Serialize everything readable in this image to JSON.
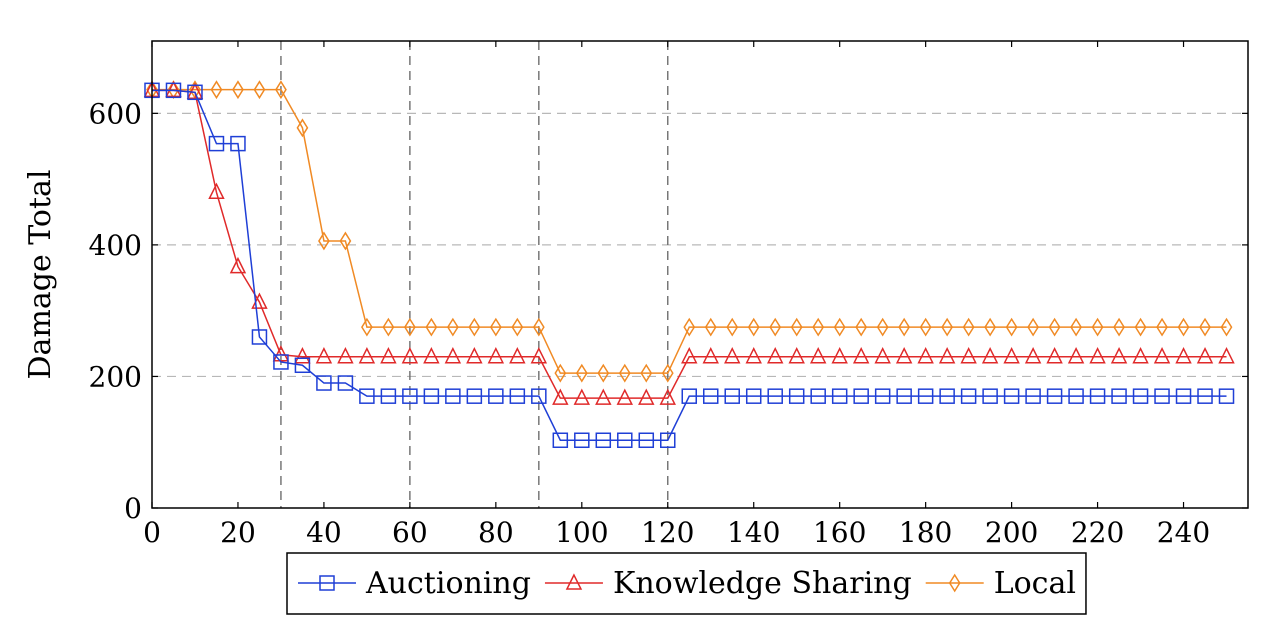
{
  "chart_data": {
    "type": "line",
    "title": "",
    "xlabel": "",
    "ylabel": "Damage Total",
    "xlim": [
      0,
      255
    ],
    "ylim": [
      0,
      710
    ],
    "x_ticks": [
      0,
      20,
      40,
      60,
      80,
      100,
      120,
      140,
      160,
      180,
      200,
      220,
      240
    ],
    "y_ticks": [
      0,
      200,
      400,
      600
    ],
    "grid": {
      "horizontal": "dashed light gray at each y tick",
      "vertical": "dashed dark gray at selected x values",
      "vertical_lines_at": [
        30,
        60,
        90,
        120
      ]
    },
    "legend_position": "bottom-center",
    "x": [
      0,
      5,
      10,
      15,
      20,
      25,
      30,
      35,
      40,
      45,
      50,
      55,
      60,
      65,
      70,
      75,
      80,
      85,
      90,
      95,
      100,
      105,
      110,
      115,
      120,
      125,
      130,
      135,
      140,
      145,
      150,
      155,
      160,
      165,
      170,
      175,
      180,
      185,
      190,
      195,
      200,
      205,
      210,
      215,
      220,
      225,
      230,
      235,
      240,
      245,
      250
    ],
    "series": [
      {
        "name": "Auctioning",
        "color": "#1f3fd6",
        "marker": "square",
        "values": [
          635,
          635,
          632,
          554,
          554,
          260,
          222,
          217,
          190,
          190,
          170,
          170,
          170,
          170,
          170,
          170,
          170,
          170,
          170,
          103,
          103,
          103,
          103,
          103,
          103,
          170,
          170,
          170,
          170,
          170,
          170,
          170,
          170,
          170,
          170,
          170,
          170,
          170,
          170,
          170,
          170,
          170,
          170,
          170,
          170,
          170,
          170,
          170,
          170,
          170,
          170
        ]
      },
      {
        "name": "Knowledge Sharing",
        "color": "#e02a2a",
        "marker": "triangle",
        "values": [
          635,
          635,
          632,
          480,
          367,
          313,
          233,
          230,
          230,
          230,
          230,
          230,
          230,
          230,
          230,
          230,
          230,
          230,
          230,
          167,
          167,
          167,
          167,
          167,
          167,
          230,
          230,
          230,
          230,
          230,
          230,
          230,
          230,
          230,
          230,
          230,
          230,
          230,
          230,
          230,
          230,
          230,
          230,
          230,
          230,
          230,
          230,
          230,
          230,
          230,
          230
        ]
      },
      {
        "name": "Local",
        "color": "#f08a24",
        "marker": "diamond",
        "values": [
          636,
          636,
          636,
          636,
          636,
          636,
          636,
          578,
          406,
          406,
          275,
          275,
          275,
          275,
          275,
          275,
          275,
          275,
          275,
          205,
          205,
          205,
          205,
          205,
          205,
          275,
          275,
          275,
          275,
          275,
          275,
          275,
          275,
          275,
          275,
          275,
          275,
          275,
          275,
          275,
          275,
          275,
          275,
          275,
          275,
          275,
          275,
          275,
          275,
          275,
          275
        ]
      }
    ]
  }
}
